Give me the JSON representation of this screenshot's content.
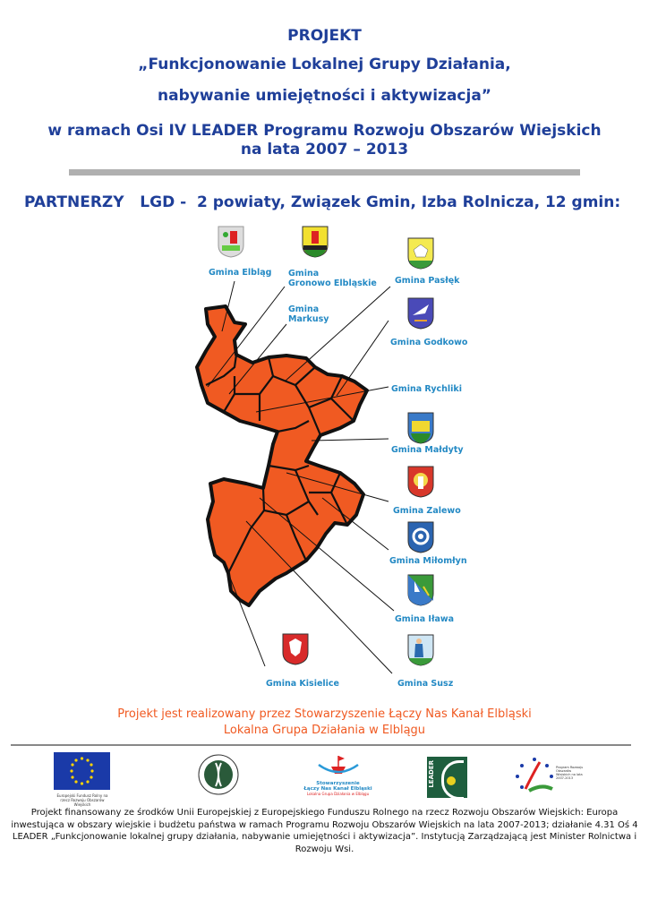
{
  "header": {
    "title": "PROJEKT",
    "line1": "„Funkcjonowanie Lokalnej Grupy Działania,",
    "line2": "nabywanie umiejętności i aktywizacja”",
    "line3": "w  ramach  Osi IV LEADER Programu Rozwoju Obszarów Wiejskich",
    "line4": "na lata 2007 – 2013"
  },
  "partners": "PARTNERZY   LGD -  2 powiaty, Związek Gmin, Izba Rolnicza, 12 gmin:",
  "gminy": {
    "elblag": "Gmina Elbląg",
    "gronowo1": "Gmina",
    "gronowo2": "Gronowo Elbląskie",
    "markusy1": "Gmina",
    "markusy2": "Markusy",
    "paslek": "Gmina Pasłęk",
    "godkowo": "Gmina Godkowo",
    "rychliki": "Gmina Rychliki",
    "maldyty": "Gmina Małdyty",
    "zalewo": "Gmina Zalewo",
    "milomlyn": "Gmina Miłomłyn",
    "ilawa": "Gmina Iława",
    "kisielice": "Gmina Kisielice",
    "susz": "Gmina Susz"
  },
  "colors": {
    "title": "#1f3f99",
    "label": "#2389c4",
    "map": "#f05a22",
    "org": "#f05a22"
  },
  "organizer": {
    "line1": "Projekt jest realizowany przez Stowarzyszenie Łączy Nas Kanał Elbląski",
    "line2": "Lokalna Grupa Działania w Elblągu"
  },
  "logos": {
    "eu_caption": "Europejski Fundusz Rolny na rzecz Rozwoju Obszarów Wiejskich",
    "stow_line1": "Stowarzyszenie",
    "stow_line2": "Łączy Nas Kanał Elbląski",
    "stow_line3": "Lokalna Grupa Działania w Elblągu",
    "leader": "LEADER",
    "prow": "Program Rozwoju Obszarów Wiejskich na lata 2007-2013"
  },
  "footer": "Projekt finansowany  ze środków Unii Europejskiej z Europejskiego Funduszu Rolnego na rzecz Rozwoju Obszarów Wiejskich: Europa inwestująca w obszary wiejskie i budżetu państwa w ramach Programu Rozwoju Obszarów Wiejskich na lata 2007-2013; działanie 4.31 Oś 4 LEADER „Funkcjonowanie lokalnej grupy działania, nabywanie umiejętności i aktywizacja”. Instytucją Zarządzającą jest Minister Rolnictwa i Rozwoju Wsi."
}
